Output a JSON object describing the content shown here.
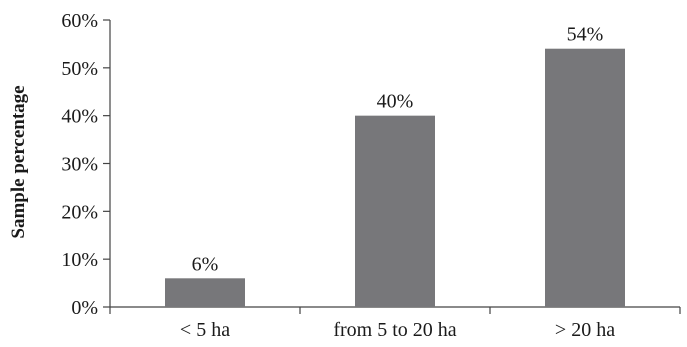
{
  "chart_data": {
    "type": "bar",
    "categories": [
      "< 5 ha",
      "from 5 to 20 ha",
      "> 20 ha"
    ],
    "values": [
      6,
      40,
      54
    ],
    "data_labels": [
      "6%",
      "40%",
      "54%"
    ],
    "title": "",
    "xlabel": "",
    "ylabel": "Sample percentage",
    "ylim": [
      0,
      60
    ],
    "yticks": [
      0,
      10,
      20,
      30,
      40,
      50,
      60
    ],
    "ytick_labels": [
      "0%",
      "10%",
      "20%",
      "30%",
      "40%",
      "50%",
      "60%"
    ],
    "grid": false,
    "legend": "none",
    "bar_color": "#77777a"
  }
}
